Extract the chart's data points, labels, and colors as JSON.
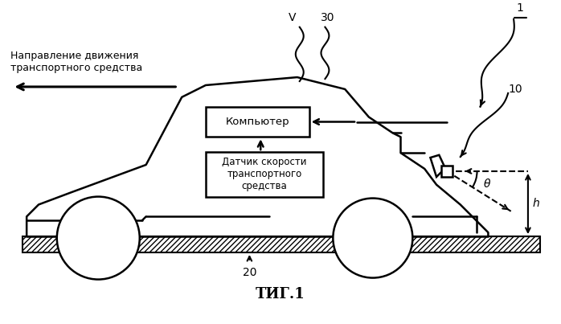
{
  "title": "ΤИГ.1",
  "label_1": "1",
  "label_10": "10",
  "label_20": "20",
  "label_30": "30",
  "label_V": "V",
  "label_theta": "θ",
  "label_h": "h",
  "label_computer": "Компьютер",
  "label_sensor": "Датчик скорости\nтранспортного\nсредства",
  "label_direction_line1": "Направление движения",
  "label_direction_line2": "транспортного средства",
  "bg_color": "#ffffff",
  "line_color": "#000000"
}
